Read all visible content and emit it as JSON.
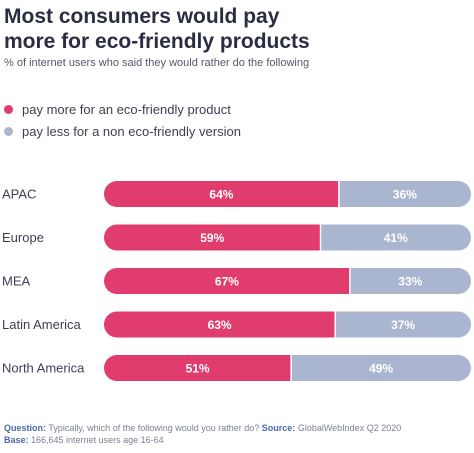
{
  "header": {
    "title_line1": "Most consumers would pay",
    "title_line2": "more for eco-friendly products",
    "subtitle": "% of internet users who said they would rather do the following"
  },
  "colors": {
    "pink": "#e03c6e",
    "blue": "#aab5cf"
  },
  "chart_data": {
    "type": "bar",
    "orientation": "horizontal",
    "stacked": true,
    "categories": [
      "APAC",
      "Europe",
      "MEA",
      "Latin America",
      "North America"
    ],
    "series": [
      {
        "name": "pay more for an eco-friendly product",
        "values": [
          64,
          59,
          67,
          63,
          51
        ],
        "color": "#e03c6e"
      },
      {
        "name": "pay less for a non eco-friendly version",
        "values": [
          36,
          41,
          33,
          37,
          49
        ],
        "color": "#aab5cf"
      }
    ],
    "value_suffix": "%",
    "xlim": [
      0,
      100
    ],
    "grid": false,
    "legend_position": "top-left"
  },
  "footer": {
    "question_label": "Question:",
    "question_text": " Typically, which of the following would you rather do?",
    "source_label": " Source:",
    "source_text": " GlobalWebIndex Q2 2020",
    "base_label": "Base:",
    "base_text": " 166,645 internet users age 16-64"
  }
}
